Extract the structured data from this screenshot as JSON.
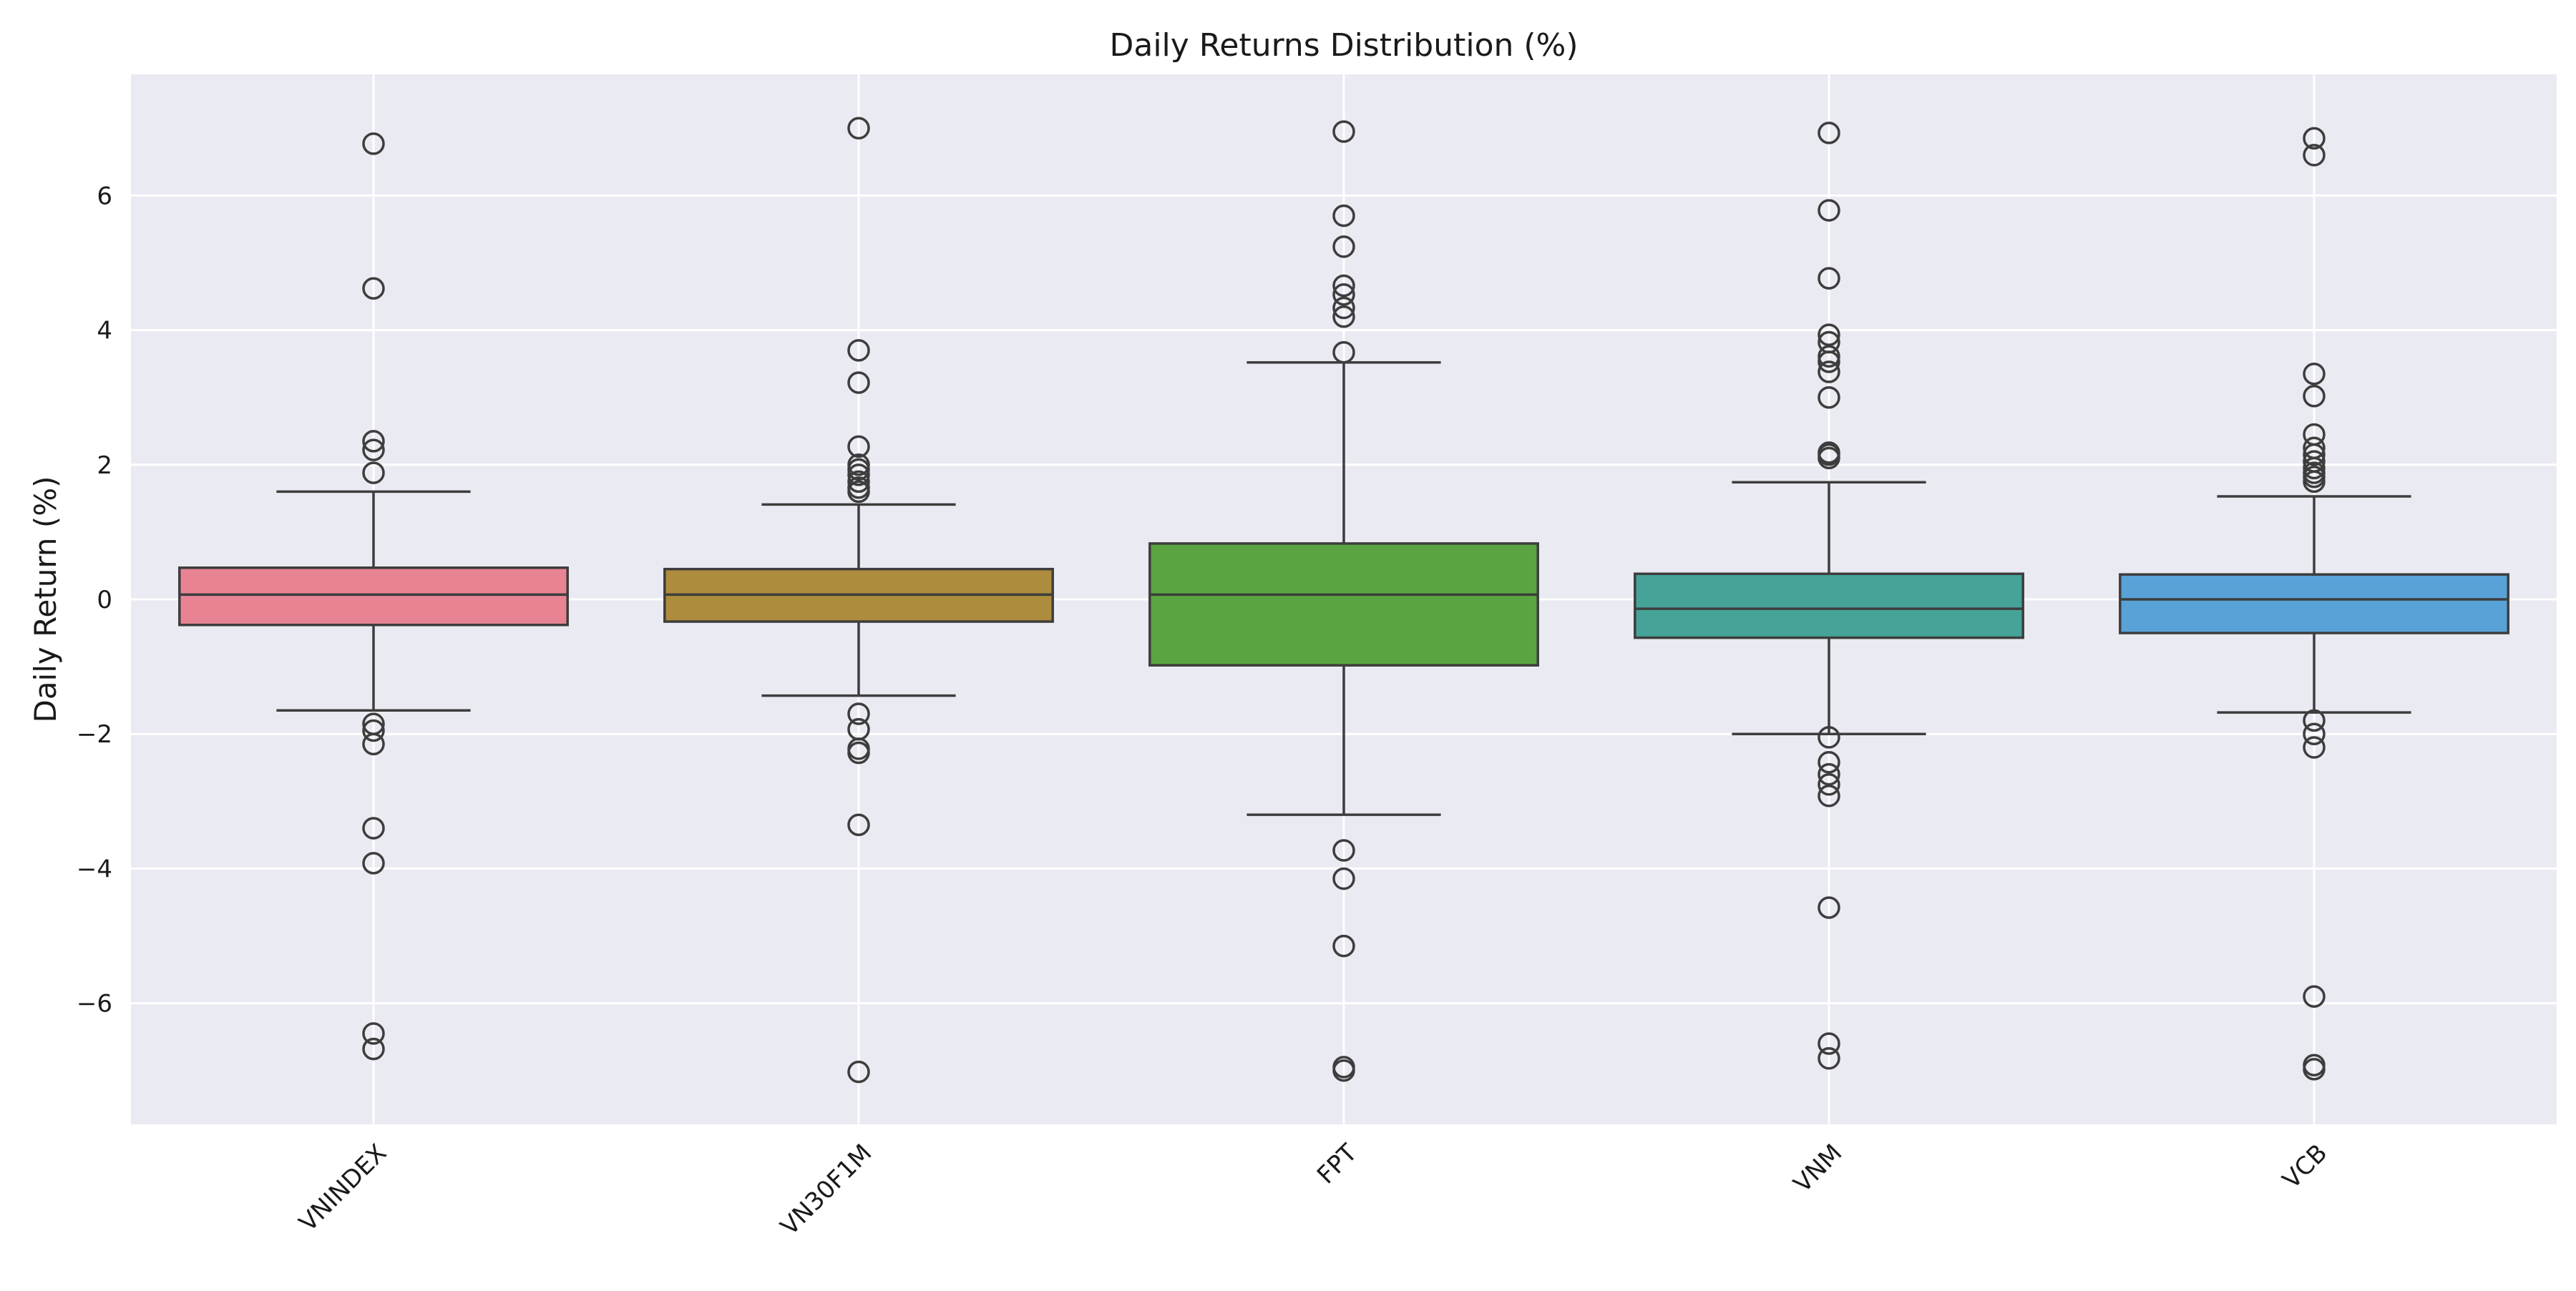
{
  "chart_data": {
    "type": "box",
    "title": "Daily Returns Distribution (%)",
    "ylabel": "Daily Return (%)",
    "xlabel": "",
    "ylim": [
      -7.8,
      7.8
    ],
    "yticks": [
      -6,
      -4,
      -2,
      0,
      2,
      4,
      6
    ],
    "ytick_labels": [
      "−6",
      "−4",
      "−2",
      "0",
      "2",
      "4",
      "6"
    ],
    "grid": true,
    "background": "#eaeaf2",
    "categories": [
      "VNINDEX",
      "VN30F1M",
      "FPT",
      "VNM",
      "VCB"
    ],
    "series": [
      {
        "category": "VNINDEX",
        "color": "#e88394",
        "q1": -0.38,
        "median": 0.07,
        "q3": 0.47,
        "whisker_low": -1.65,
        "whisker_high": 1.6,
        "outliers": [
          6.77,
          4.62,
          2.35,
          2.22,
          1.88,
          -1.85,
          -1.95,
          -2.15,
          -3.4,
          -3.92,
          -6.45,
          -6.68
        ]
      },
      {
        "category": "VN30F1M",
        "color": "#ad8c3d",
        "q1": -0.33,
        "median": 0.07,
        "q3": 0.45,
        "whisker_low": -1.43,
        "whisker_high": 1.41,
        "outliers": [
          7.0,
          3.7,
          3.22,
          2.27,
          2.0,
          1.93,
          1.85,
          1.75,
          1.66,
          1.6,
          -1.7,
          -1.93,
          -2.22,
          -2.28,
          -3.35,
          -7.02
        ]
      },
      {
        "category": "FPT",
        "color": "#5aa541",
        "q1": -0.98,
        "median": 0.07,
        "q3": 0.83,
        "whisker_low": -3.2,
        "whisker_high": 3.52,
        "outliers": [
          6.95,
          5.7,
          5.24,
          4.66,
          4.53,
          4.33,
          4.2,
          3.67,
          -3.73,
          -4.15,
          -5.15,
          -6.95,
          -7.0
        ]
      },
      {
        "category": "VNM",
        "color": "#46a398",
        "q1": -0.57,
        "median": -0.14,
        "q3": 0.38,
        "whisker_low": -2.0,
        "whisker_high": 1.74,
        "outliers": [
          6.93,
          5.78,
          4.77,
          3.93,
          3.82,
          3.61,
          3.53,
          3.38,
          3.0,
          2.18,
          2.15,
          2.1,
          -2.05,
          -2.42,
          -2.6,
          -2.75,
          -2.92,
          -4.58,
          -6.6,
          -6.82
        ]
      },
      {
        "category": "VCB",
        "color": "#58a2d8",
        "q1": -0.5,
        "median": 0.0,
        "q3": 0.37,
        "whisker_low": -1.68,
        "whisker_high": 1.53,
        "outliers": [
          6.85,
          6.6,
          3.35,
          3.02,
          2.45,
          2.25,
          2.15,
          2.05,
          1.95,
          1.88,
          1.82,
          1.75,
          -1.8,
          -2.0,
          -2.2,
          -5.9,
          -6.92,
          -6.98
        ]
      }
    ]
  }
}
